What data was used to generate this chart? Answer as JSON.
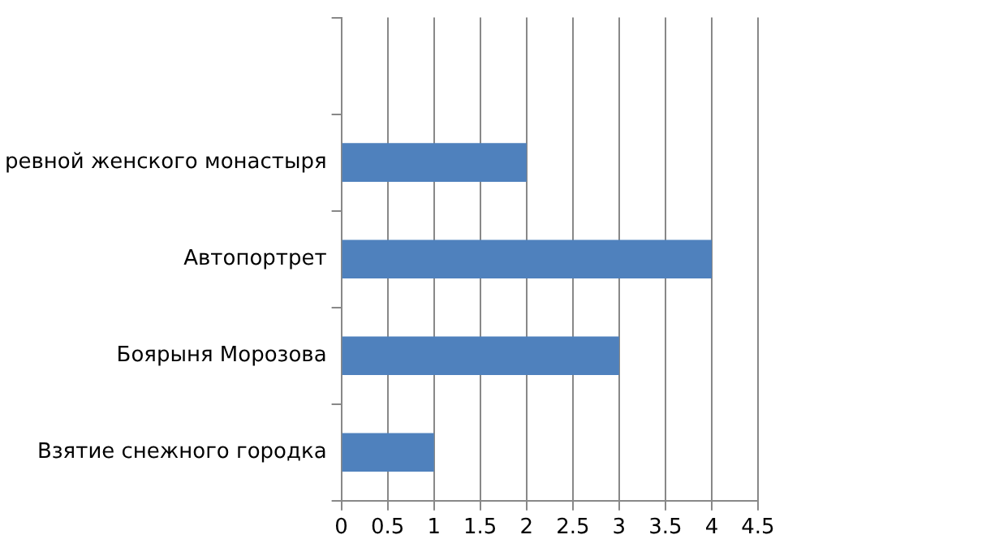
{
  "chart_data": {
    "type": "bar",
    "orientation": "horizontal",
    "categories": [
      null,
      "ревной женского монастыря",
      "Автопортрет",
      "Боярыня Морозова",
      "Взятие снежного городка"
    ],
    "values": [
      null,
      2,
      4,
      3,
      1
    ],
    "color": "#4f81bd",
    "xlim": [
      0,
      4.5
    ],
    "xticks": [
      0,
      0.5,
      1,
      1.5,
      2,
      2.5,
      3,
      3.5,
      4,
      4.5
    ],
    "grid": "x",
    "legend": false
  }
}
